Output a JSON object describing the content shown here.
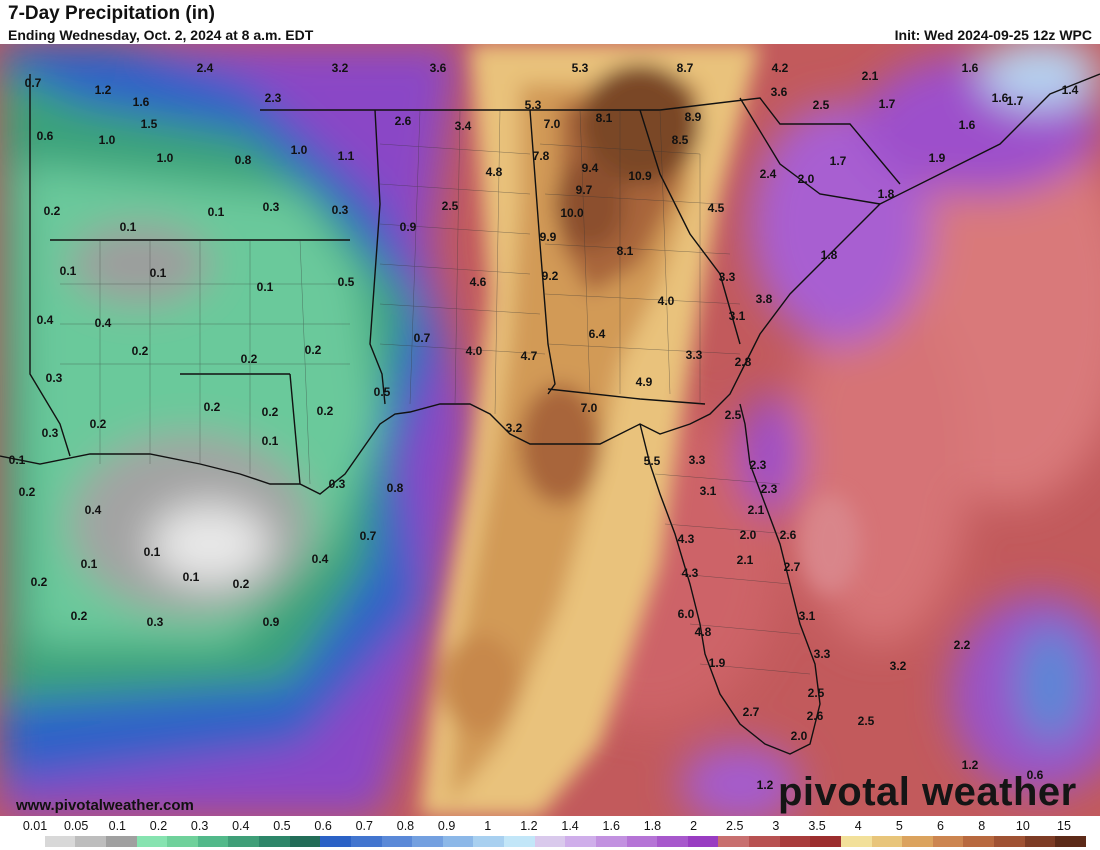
{
  "header": {
    "title": "7-Day Precipitation (in)",
    "subtitle": "Ending Wednesday, Oct. 2, 2024 at 8 a.m. EDT",
    "init": "Init: Wed 2024-09-25 12z WPC"
  },
  "footer": {
    "url": "www.pivotalweather.com",
    "brand": "pivotal weather"
  },
  "legend": {
    "labels": [
      "0.01",
      "0.05",
      "0.1",
      "0.2",
      "0.3",
      "0.4",
      "0.5",
      "0.6",
      "0.7",
      "0.8",
      "0.9",
      "1",
      "1.2",
      "1.4",
      "1.6",
      "1.8",
      "2",
      "2.5",
      "3",
      "3.5",
      "4",
      "5",
      "6",
      "8",
      "10",
      "15"
    ],
    "colors": [
      "#ffffff",
      "#d8d8d8",
      "#bdbdbd",
      "#a0a0a0",
      "#86e3b0",
      "#6fd19b",
      "#52b98a",
      "#3f9f78",
      "#2d8669",
      "#226d58",
      "#2b62c6",
      "#4275cf",
      "#5a89d8",
      "#73a0e0",
      "#8cb8e8",
      "#a8d0f0",
      "#c2e6f8",
      "#d9c9ec",
      "#cfaeea",
      "#c291e0",
      "#b574d6",
      "#a758cc",
      "#993dc2",
      "#c86f6f",
      "#b85252",
      "#a83c3c",
      "#9c2e2e",
      "#f2e09a",
      "#e8c57a",
      "#dba35e",
      "#cc8550",
      "#b8693f",
      "#9f5233",
      "#7d3c25",
      "#5c2a18"
    ]
  },
  "map_labels": [
    {
      "t": "0.7"
    },
    {
      "t": "1.2"
    },
    {
      "t": "1.6"
    },
    {
      "t": "1.5"
    },
    {
      "t": "2.4"
    },
    {
      "t": "2.3"
    },
    {
      "t": "3.2"
    },
    {
      "t": "3.6"
    },
    {
      "t": "5.3"
    },
    {
      "t": "8.7"
    },
    {
      "t": "4.2"
    },
    {
      "t": "2.1"
    },
    {
      "t": "1.6"
    },
    {
      "t": "1.6"
    },
    {
      "t": "1.4"
    },
    {
      "t": "3.6"
    },
    {
      "t": "2.5"
    },
    {
      "t": "1.7"
    },
    {
      "t": "1.7"
    },
    {
      "t": "1.6"
    },
    {
      "t": "0.6"
    },
    {
      "t": "1.0"
    },
    {
      "t": "1.0"
    },
    {
      "t": "0.8"
    },
    {
      "t": "1.0"
    },
    {
      "t": "1.1"
    },
    {
      "t": "2.6"
    },
    {
      "t": "3.4"
    },
    {
      "t": "5.3"
    },
    {
      "t": "7.0"
    },
    {
      "t": "8.1"
    },
    {
      "t": "8.9"
    },
    {
      "t": "8.5"
    },
    {
      "t": "7.8"
    },
    {
      "t": "9.4"
    },
    {
      "t": "9.7"
    },
    {
      "t": "10.9"
    },
    {
      "t": "10.0"
    },
    {
      "t": "4.8"
    },
    {
      "t": "2.5"
    },
    {
      "t": "1.7"
    },
    {
      "t": "2.4"
    },
    {
      "t": "2.0"
    },
    {
      "t": "1.9"
    },
    {
      "t": "1.8"
    },
    {
      "t": "4.5"
    },
    {
      "t": "0.2"
    },
    {
      "t": "0.1"
    },
    {
      "t": "0.3"
    },
    {
      "t": "0.3"
    },
    {
      "t": "0.9"
    },
    {
      "t": "0.1"
    },
    {
      "t": "9.9"
    },
    {
      "t": "8.1"
    },
    {
      "t": "1.8"
    },
    {
      "t": "0.1"
    },
    {
      "t": "0.1"
    },
    {
      "t": "0.1"
    },
    {
      "t": "0.5"
    },
    {
      "t": "4.6"
    },
    {
      "t": "9.2"
    },
    {
      "t": "3.3"
    },
    {
      "t": "3.8"
    },
    {
      "t": "0.4"
    },
    {
      "t": "0.4"
    },
    {
      "t": "0.2"
    },
    {
      "t": "0.7"
    },
    {
      "t": "4.0"
    },
    {
      "t": "3.1"
    },
    {
      "t": "0.2"
    },
    {
      "t": "0.2"
    },
    {
      "t": "0.2"
    },
    {
      "t": "4.0"
    },
    {
      "t": "4.7"
    },
    {
      "t": "6.4"
    },
    {
      "t": "3.3"
    },
    {
      "t": "0.3"
    },
    {
      "t": "0.5"
    },
    {
      "t": "4.9"
    },
    {
      "t": "2.8"
    },
    {
      "t": "0.2"
    },
    {
      "t": "0.2"
    },
    {
      "t": "7.0"
    },
    {
      "t": "2.5"
    },
    {
      "t": "0.3"
    },
    {
      "t": "0.2"
    },
    {
      "t": "0.1"
    },
    {
      "t": "3.2"
    },
    {
      "t": "0.1"
    },
    {
      "t": "5.5"
    },
    {
      "t": "3.3"
    },
    {
      "t": "2.3"
    },
    {
      "t": "0.2"
    },
    {
      "t": "0.4"
    },
    {
      "t": "0.3"
    },
    {
      "t": "0.8"
    },
    {
      "t": "3.1"
    },
    {
      "t": "2.3"
    },
    {
      "t": "0.1"
    },
    {
      "t": "0.7"
    },
    {
      "t": "2.1"
    },
    {
      "t": "2.0"
    },
    {
      "t": "2.6"
    },
    {
      "t": "4.3"
    },
    {
      "t": "0.1"
    },
    {
      "t": "0.4"
    },
    {
      "t": "2.1"
    },
    {
      "t": "2.7"
    },
    {
      "t": "0.2"
    },
    {
      "t": "0.1"
    },
    {
      "t": "0.2"
    },
    {
      "t": "4.3"
    },
    {
      "t": "0.2"
    },
    {
      "t": "0.3"
    },
    {
      "t": "0.9"
    },
    {
      "t": "6.0"
    },
    {
      "t": "3.1"
    },
    {
      "t": "4.8"
    },
    {
      "t": "2.2"
    },
    {
      "t": "3.3"
    },
    {
      "t": "1.9"
    },
    {
      "t": "3.2"
    },
    {
      "t": "2.5"
    },
    {
      "t": "2.7"
    },
    {
      "t": "2.6"
    },
    {
      "t": "2.5"
    },
    {
      "t": "2.0"
    },
    {
      "t": "1.2"
    },
    {
      "t": "1.2"
    },
    {
      "t": "0.6"
    }
  ]
}
